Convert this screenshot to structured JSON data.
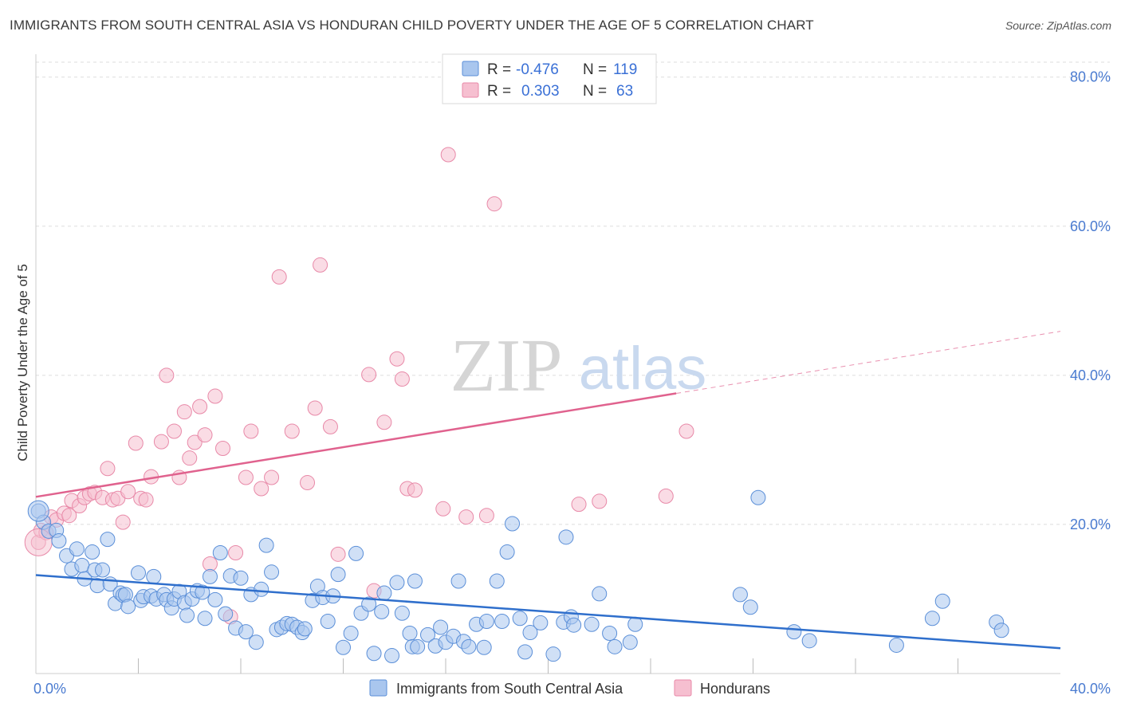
{
  "title": "IMMIGRANTS FROM SOUTH CENTRAL ASIA VS HONDURAN CHILD POVERTY UNDER THE AGE OF 5 CORRELATION CHART",
  "source": "Source: ZipAtlas.com",
  "watermark": {
    "zip": "ZIP",
    "atlas": "atlas"
  },
  "colors": {
    "blue_fill": "#a9c6ee",
    "blue_stroke": "#5b8fd8",
    "blue_line": "#2f6fcc",
    "pink_fill": "#f6bfd0",
    "pink_stroke": "#e889a8",
    "pink_line": "#e0628e",
    "grid": "#dddddd",
    "tick_label": "#4a7bd0"
  },
  "legend": {
    "rows": [
      {
        "r_label": "R =",
        "r_value": "-0.476",
        "n_label": "N =",
        "n_value": "119"
      },
      {
        "r_label": "R =",
        "r_value": "0.303",
        "n_label": "N =",
        "n_value": "63"
      }
    ]
  },
  "chart_data": {
    "type": "scatter",
    "xlabel": "",
    "ylabel": "Child Poverty Under the Age of 5",
    "xlim": [
      0,
      40
    ],
    "ylim": [
      0,
      82
    ],
    "x_tick_labels": [
      "0.0%",
      "40.0%"
    ],
    "y_ticks": [
      20,
      40,
      60,
      80
    ],
    "y_tick_labels": [
      "20.0%",
      "40.0%",
      "60.0%",
      "80.0%"
    ],
    "grid": true,
    "legend_position": "top-center",
    "series": [
      {
        "name": "Immigrants from South Central Asia",
        "color": "#a9c6ee",
        "trend": {
          "x": [
            0,
            40
          ],
          "y": [
            13.2,
            3.4
          ],
          "dashed_from": null
        },
        "points": [
          [
            0.1,
            21.8
          ],
          [
            0.3,
            20.3
          ],
          [
            0.5,
            19.1
          ],
          [
            0.8,
            19.2
          ],
          [
            0.9,
            17.8
          ],
          [
            1.2,
            15.8
          ],
          [
            1.4,
            14.0
          ],
          [
            1.6,
            16.7
          ],
          [
            1.8,
            14.5
          ],
          [
            1.9,
            12.7
          ],
          [
            2.2,
            16.3
          ],
          [
            2.3,
            13.9
          ],
          [
            2.4,
            11.8
          ],
          [
            2.6,
            13.9
          ],
          [
            2.8,
            18.0
          ],
          [
            2.9,
            12.0
          ],
          [
            3.1,
            9.4
          ],
          [
            3.3,
            10.8
          ],
          [
            3.4,
            10.5
          ],
          [
            3.5,
            10.6
          ],
          [
            3.6,
            9.0
          ],
          [
            4.0,
            13.5
          ],
          [
            4.1,
            9.8
          ],
          [
            4.2,
            10.3
          ],
          [
            4.5,
            10.4
          ],
          [
            4.6,
            13.0
          ],
          [
            4.7,
            10.0
          ],
          [
            5.0,
            10.6
          ],
          [
            5.1,
            9.9
          ],
          [
            5.3,
            8.8
          ],
          [
            5.4,
            10.0
          ],
          [
            5.6,
            11.0
          ],
          [
            5.8,
            9.5
          ],
          [
            5.9,
            7.8
          ],
          [
            6.1,
            10.0
          ],
          [
            6.3,
            11.1
          ],
          [
            6.5,
            10.9
          ],
          [
            6.6,
            7.4
          ],
          [
            6.8,
            13.0
          ],
          [
            7.0,
            9.9
          ],
          [
            7.2,
            16.2
          ],
          [
            7.4,
            8.0
          ],
          [
            7.6,
            13.1
          ],
          [
            7.8,
            6.1
          ],
          [
            8.0,
            12.8
          ],
          [
            8.2,
            5.6
          ],
          [
            8.4,
            10.6
          ],
          [
            8.6,
            4.2
          ],
          [
            8.8,
            11.3
          ],
          [
            9.0,
            17.2
          ],
          [
            9.2,
            13.6
          ],
          [
            9.4,
            5.9
          ],
          [
            9.6,
            6.2
          ],
          [
            9.8,
            6.7
          ],
          [
            10.0,
            6.6
          ],
          [
            10.2,
            6.2
          ],
          [
            10.4,
            5.5
          ],
          [
            10.5,
            6.0
          ],
          [
            10.8,
            9.8
          ],
          [
            11.0,
            11.7
          ],
          [
            11.2,
            10.2
          ],
          [
            11.4,
            7.0
          ],
          [
            11.6,
            10.4
          ],
          [
            11.8,
            13.3
          ],
          [
            12.0,
            3.5
          ],
          [
            12.3,
            5.4
          ],
          [
            12.5,
            16.1
          ],
          [
            12.7,
            8.1
          ],
          [
            13.0,
            9.3
          ],
          [
            13.2,
            2.7
          ],
          [
            13.5,
            8.3
          ],
          [
            13.6,
            10.8
          ],
          [
            13.9,
            2.4
          ],
          [
            14.1,
            12.2
          ],
          [
            14.3,
            8.1
          ],
          [
            14.6,
            5.4
          ],
          [
            14.7,
            3.6
          ],
          [
            14.8,
            12.4
          ],
          [
            14.9,
            3.6
          ],
          [
            15.3,
            5.2
          ],
          [
            15.6,
            3.7
          ],
          [
            15.8,
            6.2
          ],
          [
            16.0,
            4.2
          ],
          [
            16.3,
            5.0
          ],
          [
            16.5,
            12.4
          ],
          [
            16.7,
            4.3
          ],
          [
            16.9,
            3.6
          ],
          [
            17.2,
            6.6
          ],
          [
            17.5,
            3.5
          ],
          [
            17.6,
            7.0
          ],
          [
            18.0,
            12.4
          ],
          [
            18.2,
            7.0
          ],
          [
            18.4,
            16.3
          ],
          [
            18.6,
            20.1
          ],
          [
            18.9,
            7.4
          ],
          [
            19.1,
            2.9
          ],
          [
            19.3,
            5.5
          ],
          [
            19.7,
            6.8
          ],
          [
            20.2,
            2.6
          ],
          [
            20.6,
            6.9
          ],
          [
            20.7,
            18.3
          ],
          [
            20.9,
            7.6
          ],
          [
            21.0,
            6.5
          ],
          [
            21.7,
            6.6
          ],
          [
            22.0,
            10.7
          ],
          [
            22.4,
            5.4
          ],
          [
            22.6,
            3.6
          ],
          [
            23.2,
            4.2
          ],
          [
            23.4,
            6.6
          ],
          [
            27.5,
            10.6
          ],
          [
            27.9,
            8.9
          ],
          [
            28.2,
            23.6
          ],
          [
            29.6,
            5.6
          ],
          [
            30.2,
            4.4
          ],
          [
            33.6,
            3.8
          ],
          [
            35.0,
            7.4
          ],
          [
            35.4,
            9.7
          ],
          [
            37.5,
            6.9
          ],
          [
            37.7,
            5.8
          ]
        ]
      },
      {
        "name": "Hondurans",
        "color": "#f6bfd0",
        "trend": {
          "x": [
            0,
            40
          ],
          "y": [
            23.7,
            45.9
          ],
          "dashed_from": 25
        },
        "points": [
          [
            0.1,
            17.6
          ],
          [
            0.2,
            19.2
          ],
          [
            0.4,
            18.9
          ],
          [
            0.6,
            21.0
          ],
          [
            0.8,
            20.6
          ],
          [
            1.1,
            21.5
          ],
          [
            1.3,
            21.2
          ],
          [
            1.4,
            23.2
          ],
          [
            1.7,
            22.5
          ],
          [
            1.9,
            23.6
          ],
          [
            2.1,
            24.1
          ],
          [
            2.3,
            24.3
          ],
          [
            2.6,
            23.6
          ],
          [
            2.8,
            27.5
          ],
          [
            3.0,
            23.3
          ],
          [
            3.2,
            23.5
          ],
          [
            3.4,
            20.3
          ],
          [
            3.6,
            24.4
          ],
          [
            3.9,
            30.9
          ],
          [
            4.1,
            23.5
          ],
          [
            4.3,
            23.3
          ],
          [
            4.5,
            26.4
          ],
          [
            4.9,
            31.1
          ],
          [
            5.1,
            40.0
          ],
          [
            5.4,
            32.5
          ],
          [
            5.6,
            26.3
          ],
          [
            5.8,
            35.1
          ],
          [
            6.0,
            28.9
          ],
          [
            6.2,
            31.0
          ],
          [
            6.4,
            35.8
          ],
          [
            6.6,
            32.0
          ],
          [
            6.8,
            14.7
          ],
          [
            7.0,
            37.2
          ],
          [
            7.3,
            30.2
          ],
          [
            7.6,
            7.6
          ],
          [
            7.8,
            16.2
          ],
          [
            8.2,
            26.3
          ],
          [
            8.4,
            32.5
          ],
          [
            8.8,
            24.8
          ],
          [
            9.2,
            26.3
          ],
          [
            9.5,
            53.2
          ],
          [
            10.0,
            32.5
          ],
          [
            10.6,
            25.6
          ],
          [
            10.9,
            35.6
          ],
          [
            11.1,
            54.8
          ],
          [
            11.5,
            33.1
          ],
          [
            11.8,
            16.0
          ],
          [
            13.0,
            40.1
          ],
          [
            13.2,
            11.1
          ],
          [
            13.6,
            33.7
          ],
          [
            14.1,
            42.2
          ],
          [
            14.3,
            39.5
          ],
          [
            14.5,
            24.8
          ],
          [
            14.8,
            24.6
          ],
          [
            15.9,
            22.1
          ],
          [
            16.1,
            69.6
          ],
          [
            16.8,
            21.0
          ],
          [
            17.6,
            21.2
          ],
          [
            17.9,
            63.0
          ],
          [
            21.2,
            22.7
          ],
          [
            22.0,
            23.1
          ],
          [
            24.6,
            23.8
          ],
          [
            25.4,
            32.5
          ]
        ]
      }
    ],
    "x_axis_minor_ticks": [
      4,
      8,
      12,
      16,
      20,
      24,
      28,
      32,
      36
    ]
  },
  "bottom_legend": {
    "items": [
      "Immigrants from South Central Asia",
      "Hondurans"
    ]
  }
}
